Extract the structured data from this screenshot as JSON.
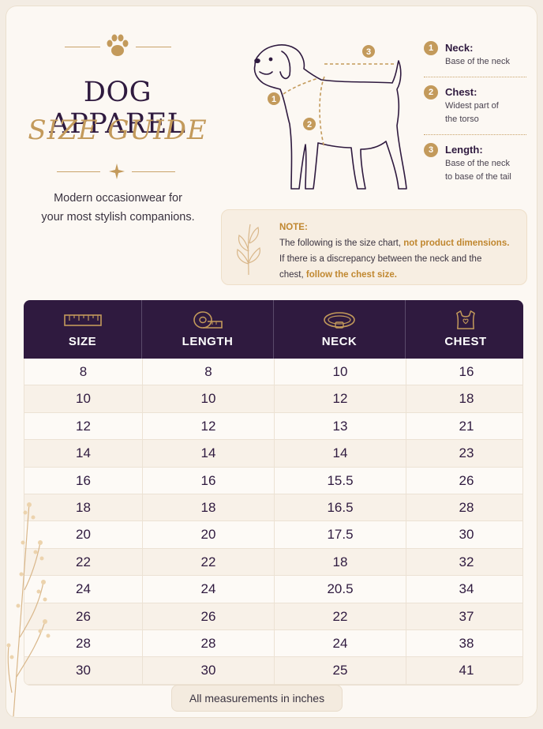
{
  "header": {
    "title_line1": "DOG APPAREL",
    "title_line2": "SIZE GUIDE",
    "tagline_line1": "Modern occasionwear for",
    "tagline_line2": "your most stylish companions."
  },
  "diagram": {
    "markers": [
      "1",
      "2",
      "3"
    ]
  },
  "legend": [
    {
      "num": "1",
      "title": "Neck:",
      "desc1": "Base of the neck",
      "desc2": ""
    },
    {
      "num": "2",
      "title": "Chest:",
      "desc1": "Widest part of",
      "desc2": "the torso"
    },
    {
      "num": "3",
      "title": "Length:",
      "desc1": "Base of the neck",
      "desc2": "to base of the tail"
    }
  ],
  "note": {
    "heading": "NOTE:",
    "line1_a": "The following is the size chart, ",
    "line1_b": "not product dimensions.",
    "line2": "If there is a discrepancy between the neck and the",
    "line3_a": "chest, ",
    "line3_b": "follow the chest size."
  },
  "table": {
    "headers": [
      {
        "label": "SIZE",
        "icon": "ruler-icon"
      },
      {
        "label": "LENGTH",
        "icon": "tape-measure-icon"
      },
      {
        "label": "NECK",
        "icon": "collar-icon"
      },
      {
        "label": "CHEST",
        "icon": "vest-icon"
      }
    ],
    "rows": [
      [
        "8",
        "8",
        "10",
        "16"
      ],
      [
        "10",
        "10",
        "12",
        "18"
      ],
      [
        "12",
        "12",
        "13",
        "21"
      ],
      [
        "14",
        "14",
        "14",
        "23"
      ],
      [
        "16",
        "16",
        "15.5",
        "26"
      ],
      [
        "18",
        "18",
        "16.5",
        "28"
      ],
      [
        "20",
        "20",
        "17.5",
        "30"
      ],
      [
        "22",
        "22",
        "18",
        "32"
      ],
      [
        "24",
        "24",
        "20.5",
        "34"
      ],
      [
        "26",
        "26",
        "22",
        "37"
      ],
      [
        "28",
        "28",
        "24",
        "38"
      ],
      [
        "30",
        "30",
        "25",
        "41"
      ]
    ]
  },
  "footer": "All measurements in inches",
  "colors": {
    "primary": "#2f1a3f",
    "accent": "#c39a5b",
    "background": "#fcf8f3"
  }
}
